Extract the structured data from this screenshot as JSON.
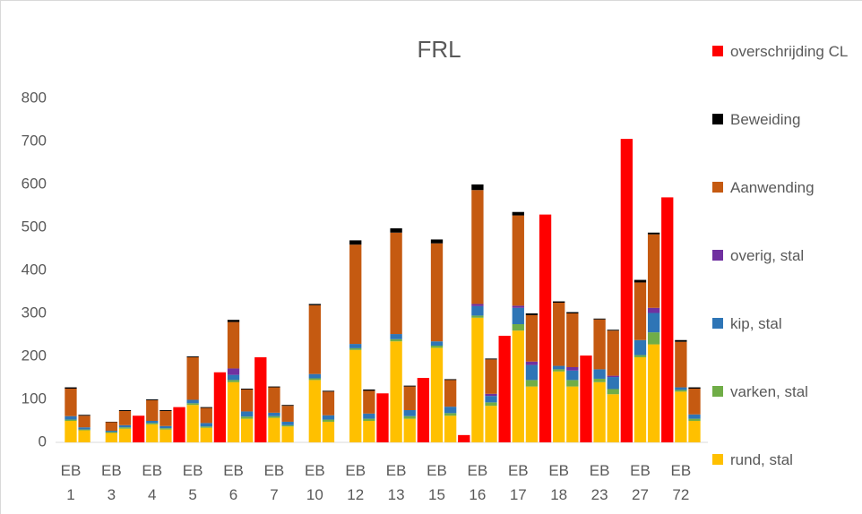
{
  "chart_data": {
    "type": "stacked_bar",
    "title": "FRL",
    "categories": [
      "EB 1",
      null,
      null,
      "EB 3",
      null,
      null,
      "EB 4",
      null,
      null,
      "EB 5",
      null,
      null,
      "EB 6",
      null,
      null,
      "EB 7",
      null,
      null,
      "EB 10",
      null,
      null,
      "EB 12",
      null,
      null,
      "EB 13",
      null,
      null,
      "EB 15",
      null,
      null,
      "EB 16",
      null,
      null,
      "EB 17",
      null,
      null,
      "EB 18",
      null,
      null,
      "EB 23",
      null,
      null,
      "EB 27",
      null,
      null,
      "EB 72",
      null,
      null
    ],
    "series": [
      {
        "name": "rund, stal",
        "color": "#ffc000",
        "values": [
          50,
          28,
          null,
          22,
          32,
          null,
          42,
          30,
          null,
          87,
          34,
          null,
          140,
          55,
          null,
          57,
          37,
          null,
          145,
          48,
          null,
          215,
          50,
          null,
          235,
          55,
          null,
          220,
          62,
          null,
          290,
          85,
          null,
          260,
          130,
          null,
          165,
          130,
          null,
          140,
          112,
          null,
          198,
          228,
          null,
          118,
          50,
          null
        ]
      },
      {
        "name": "varken, stal",
        "color": "#70ad47",
        "values": [
          3,
          2,
          null,
          2,
          3,
          null,
          3,
          3,
          null,
          4,
          3,
          null,
          5,
          5,
          null,
          4,
          3,
          null,
          4,
          5,
          null,
          4,
          5,
          null,
          5,
          6,
          null,
          5,
          6,
          null,
          5,
          8,
          null,
          15,
          15,
          null,
          5,
          15,
          null,
          8,
          12,
          null,
          5,
          28,
          null,
          4,
          5,
          null
        ]
      },
      {
        "name": "kip, stal",
        "color": "#2e75b6",
        "values": [
          8,
          5,
          null,
          3,
          5,
          null,
          5,
          5,
          null,
          8,
          8,
          null,
          12,
          12,
          null,
          8,
          8,
          null,
          10,
          10,
          null,
          10,
          12,
          null,
          12,
          14,
          null,
          10,
          15,
          null,
          22,
          15,
          null,
          38,
          35,
          null,
          8,
          22,
          null,
          22,
          28,
          null,
          35,
          45,
          null,
          6,
          10,
          null
        ]
      },
      {
        "name": "overig, stal",
        "color": "#7030a0",
        "values": [
          0,
          0,
          null,
          0,
          0,
          null,
          0,
          0,
          null,
          0,
          0,
          null,
          15,
          0,
          null,
          0,
          0,
          null,
          0,
          0,
          null,
          0,
          0,
          null,
          0,
          0,
          null,
          0,
          0,
          null,
          5,
          5,
          null,
          5,
          8,
          null,
          0,
          8,
          null,
          0,
          3,
          null,
          0,
          12,
          null,
          0,
          0,
          null
        ]
      },
      {
        "name": "Aanwending",
        "color": "#c55a11",
        "values": [
          64,
          27,
          null,
          20,
          33,
          null,
          48,
          35,
          null,
          99,
          35,
          null,
          108,
          51,
          null,
          59,
          37,
          null,
          160,
          55,
          null,
          231,
          53,
          null,
          236,
          55,
          null,
          228,
          62,
          null,
          265,
          80,
          null,
          210,
          108,
          null,
          147,
          125,
          null,
          116,
          105,
          null,
          134,
          171,
          null,
          106,
          60,
          null
        ]
      },
      {
        "name": "Beweiding",
        "color": "#000000",
        "values": [
          3,
          2,
          null,
          1,
          2,
          null,
          2,
          2,
          null,
          2,
          2,
          null,
          5,
          2,
          null,
          2,
          2,
          null,
          3,
          2,
          null,
          10,
          3,
          null,
          10,
          2,
          null,
          9,
          2,
          null,
          13,
          2,
          null,
          8,
          4,
          null,
          3,
          3,
          null,
          2,
          2,
          null,
          6,
          4,
          null,
          4,
          3,
          null
        ]
      },
      {
        "name": "overschrijding CL",
        "color": "#ff0000",
        "values": [
          null,
          null,
          null,
          null,
          null,
          62,
          null,
          null,
          82,
          null,
          null,
          163,
          null,
          null,
          198,
          null,
          null,
          null,
          null,
          null,
          null,
          null,
          null,
          114,
          null,
          null,
          150,
          null,
          null,
          17,
          null,
          null,
          248,
          null,
          null,
          530,
          null,
          null,
          202,
          null,
          null,
          706,
          null,
          null,
          570,
          null,
          null,
          null
        ]
      }
    ],
    "ylim": [
      0,
      800
    ],
    "yticks": [
      0,
      100,
      200,
      300,
      400,
      500,
      600,
      700,
      800
    ],
    "grid": false,
    "legend": "right"
  }
}
